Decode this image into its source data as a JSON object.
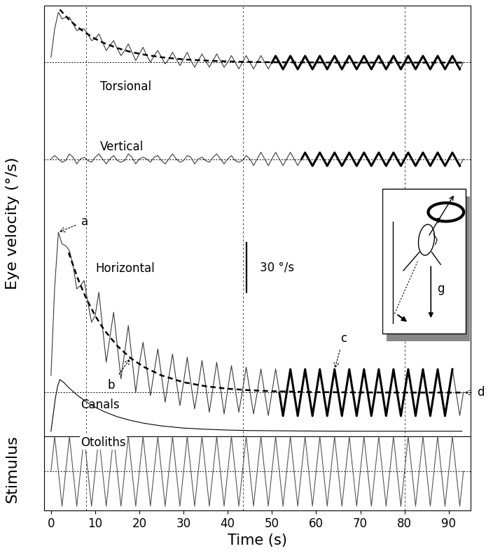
{
  "chart_data": {
    "type": "line",
    "x_label": "Time (s)",
    "y_label": "Eye velocity (°/s)",
    "stimulus_label": "Stimulus",
    "tick_labels": "x",
    "xlim": [
      -1.5,
      95
    ],
    "xticks": [
      0,
      10,
      20,
      30,
      40,
      50,
      60,
      70,
      80,
      90
    ],
    "ylim": [
      0,
      303
    ],
    "yticks": [],
    "x": [
      0,
      0.83,
      1.67,
      2.5,
      3.33,
      4.17,
      5,
      5.83,
      6.67,
      7.5,
      8.33,
      9.17,
      10,
      10.83,
      11.67,
      12.5,
      13.33,
      14.17,
      15,
      15.83,
      16.67,
      17.5,
      18.33,
      19.17,
      20,
      20.83,
      21.67,
      22.5,
      23.33,
      24.17,
      25,
      25.83,
      26.67,
      27.5,
      28.33,
      29.17,
      30,
      30.83,
      31.67,
      32.5,
      33.33,
      34.17,
      35,
      35.83,
      36.67,
      37.5,
      38.33,
      39.17,
      40,
      40.83,
      41.67,
      42.5,
      43.33,
      44.17,
      45,
      45.83,
      46.67,
      47.5,
      48.33,
      49.17,
      50,
      50.83,
      51.67,
      52.5,
      53.33,
      54.17,
      55,
      55.83,
      56.67,
      57.5,
      58.33,
      59.17,
      60,
      60.83,
      61.67,
      62.5,
      63.33,
      64.17,
      65,
      65.83,
      66.67,
      67.5,
      68.33,
      69.17,
      70,
      70.83,
      71.67,
      72.5,
      73.33,
      74.17,
      75,
      75.83,
      76.67,
      77.5,
      78.33,
      79.17,
      80,
      80.83,
      81.67,
      82.5,
      83.33,
      84.17,
      85,
      85.83,
      86.67,
      87.5,
      88.33,
      89.17,
      90,
      90.83,
      91.67,
      92.5,
      93.33
    ],
    "series": [
      {
        "name": "Torsional",
        "color": "#3a3a3a",
        "line_style": "solid",
        "baseline": 268.8,
        "values": [
          272,
          289,
          299,
          295,
          296,
          296,
          292,
          288,
          289,
          289,
          286,
          282,
          283,
          286,
          281,
          276,
          279,
          282,
          277,
          273,
          276,
          280,
          275,
          270,
          274,
          278,
          273,
          269,
          273,
          276,
          272,
          268,
          271,
          275,
          271,
          267,
          271,
          275,
          270,
          266,
          270,
          274,
          270,
          266,
          270,
          274,
          270,
          266,
          269,
          273,
          269,
          265,
          269,
          273,
          269,
          265,
          269,
          273,
          269,
          265,
          269,
          273,
          269,
          265,
          269,
          273,
          269,
          265,
          269,
          273,
          269,
          265,
          269,
          273,
          269,
          265,
          269,
          273,
          269,
          265,
          269,
          273,
          269,
          265,
          269,
          273,
          269,
          265,
          269,
          273,
          269,
          265,
          269,
          273,
          269,
          265,
          269,
          273,
          269,
          265,
          269,
          273,
          269,
          265,
          269,
          273,
          269,
          265,
          269,
          273,
          269,
          265,
          269
        ]
      },
      {
        "name": "Vertical",
        "color": "#3a3a3a",
        "line_style": "solid",
        "baseline": 210.8,
        "values": [
          211,
          213,
          211,
          209,
          210,
          214,
          212,
          208,
          211,
          212,
          210,
          209,
          212,
          214,
          211,
          208,
          211,
          213,
          210,
          209,
          210,
          214,
          212,
          208,
          211,
          212,
          211,
          209,
          212,
          213,
          210,
          208,
          211,
          214,
          211,
          209,
          210,
          213,
          212,
          208,
          211,
          212,
          210,
          209,
          212,
          214,
          211,
          208,
          211,
          213,
          210,
          209,
          210,
          213,
          211,
          207,
          211,
          215,
          211,
          207,
          211,
          215,
          211,
          207,
          211,
          215,
          211,
          207,
          211,
          215,
          211,
          207,
          211,
          215,
          211,
          207,
          211,
          215,
          211,
          207,
          211,
          215,
          211,
          207,
          211,
          215,
          211,
          207,
          211,
          215,
          211,
          207,
          211,
          215,
          211,
          207,
          211,
          215,
          211,
          207,
          211,
          215,
          211,
          207,
          211,
          215,
          211,
          207,
          211,
          215,
          211,
          207,
          211
        ]
      },
      {
        "name": "Horizontal",
        "color": "#3a3a3a",
        "line_style": "solid",
        "baseline": 70.8,
        "values": [
          81,
          134,
          167,
          160,
          159,
          156,
          147,
          133,
          135,
          138,
          125,
          113,
          117,
          131,
          110,
          89,
          104,
          119,
          99,
          79,
          95,
          111,
          91,
          71,
          88,
          101,
          85,
          69,
          83,
          97,
          81,
          65,
          80,
          94,
          78,
          63,
          77,
          92,
          76,
          61,
          75,
          90,
          75,
          59,
          74,
          89,
          74,
          58,
          73,
          87,
          73,
          59,
          72,
          86,
          72,
          58,
          71,
          85,
          71,
          57,
          71,
          85,
          71,
          57,
          71,
          85,
          71,
          57,
          71,
          85,
          71,
          57,
          71,
          85,
          71,
          57,
          71,
          85,
          71,
          57,
          71,
          85,
          71,
          57,
          71,
          85,
          71,
          57,
          71,
          85,
          71,
          57,
          71,
          85,
          71,
          57,
          71,
          85,
          71,
          57,
          71,
          85,
          71,
          57,
          71,
          85,
          71,
          57,
          71,
          85,
          71,
          57,
          71
        ]
      },
      {
        "name": "Canals",
        "color": "#000000",
        "line_style": "solid",
        "x": [
          0,
          0.5,
          1,
          1.5,
          2,
          3,
          4,
          6,
          8,
          10,
          12,
          15,
          18,
          21,
          25,
          30,
          35,
          40,
          45,
          50,
          60,
          70,
          80,
          93
        ],
        "values": [
          47.6,
          57.6,
          67.6,
          74.6,
          78.6,
          76.6,
          73.8,
          69.1,
          65.2,
          62.0,
          59.4,
          56.3,
          54.1,
          52.4,
          50.8,
          49.5,
          48.8,
          48.3,
          48.0,
          47.9,
          47.7,
          47.6,
          47.6,
          47.6
        ]
      },
      {
        "name": "Otoliths",
        "color": "#555555",
        "line_style": "solid",
        "baseline": 23.6,
        "values": [
          23.6,
          44.6,
          23.6,
          2.6,
          23.6,
          44.6,
          23.6,
          2.6,
          23.6,
          44.6,
          23.6,
          2.6,
          23.6,
          44.6,
          23.6,
          2.6,
          23.6,
          44.6,
          23.6,
          2.6,
          23.6,
          44.6,
          23.6,
          2.6,
          23.6,
          44.6,
          23.6,
          2.6,
          23.6,
          44.6,
          23.6,
          2.6,
          23.6,
          44.6,
          23.6,
          2.6,
          23.6,
          44.6,
          23.6,
          2.6,
          23.6,
          44.6,
          23.6,
          2.6,
          23.6,
          44.6,
          23.6,
          2.6,
          23.6,
          44.6,
          23.6,
          2.6,
          23.6,
          44.6,
          23.6,
          2.6,
          23.6,
          44.6,
          23.6,
          2.6,
          23.6,
          44.6,
          23.6,
          2.6,
          23.6,
          44.6,
          23.6,
          2.6,
          23.6,
          44.6,
          23.6,
          2.6,
          23.6,
          44.6,
          23.6,
          2.6,
          23.6,
          44.6,
          23.6,
          2.6,
          23.6,
          44.6,
          23.6,
          2.6,
          23.6,
          44.6,
          23.6,
          2.6,
          23.6,
          44.6,
          23.6,
          2.6,
          23.6,
          44.6,
          23.6,
          2.6,
          23.6,
          44.6,
          23.6,
          2.6,
          23.6,
          44.6,
          23.6,
          2.6,
          23.6,
          44.6,
          23.6,
          2.6,
          23.6,
          44.6,
          23.6,
          2.6,
          23.6
        ]
      }
    ],
    "fits": [
      {
        "color": "#000000",
        "line_style": "dashed",
        "x": [
          2,
          4,
          6,
          8,
          10,
          12,
          15,
          18,
          21,
          25,
          30,
          35,
          40,
          45,
          50,
          60,
          70,
          80,
          93
        ],
        "values": [
          300.6,
          294.8,
          290.1,
          286.3,
          283.1,
          280.5,
          277.5,
          275.2,
          273.6,
          272.0,
          270.7,
          270.0,
          269.5,
          269.2,
          269.0,
          268.9,
          268.8,
          268.8,
          268.8
        ]
      },
      {
        "color": "#000000",
        "line_style": "dashed",
        "x": [
          4,
          6,
          8,
          10,
          12,
          15,
          18,
          21,
          25,
          30,
          35,
          40,
          45,
          50,
          60,
          70,
          80,
          93
        ],
        "values": [
          154.8,
          139.6,
          127.1,
          116.9,
          108.5,
          98.8,
          91.5,
          86.2,
          81.1,
          77.0,
          74.6,
          73.1,
          72.2,
          71.6,
          71.1,
          70.9,
          70.8,
          70.8
        ]
      },
      {
        "color": "#000000",
        "line_style": "solid",
        "x": [
          50,
          50.83,
          51.67,
          52.5,
          53.33,
          54.17,
          55,
          55.83,
          56.67,
          57.5,
          58.33,
          59.17,
          60,
          60.83,
          61.67,
          62.5,
          63.33,
          64.17,
          65,
          65.83,
          66.67,
          67.5,
          68.33,
          69.17,
          70,
          70.83,
          71.67,
          72.5,
          73.33,
          74.17,
          75,
          75.83,
          76.67,
          77.5,
          78.33,
          79.17,
          80,
          80.83,
          81.67,
          82.5,
          83.33,
          84.17,
          85,
          85.83,
          86.67,
          87.5,
          88.33,
          89.17,
          90,
          90.83,
          91.67,
          92.5
        ],
        "values": [
          268.8,
          272.8,
          268.8,
          264.8,
          268.8,
          272.8,
          268.8,
          264.8,
          268.8,
          272.8,
          268.8,
          264.8,
          268.8,
          272.8,
          268.8,
          264.8,
          268.8,
          272.8,
          268.8,
          264.8,
          268.8,
          272.8,
          268.8,
          264.8,
          268.8,
          272.8,
          268.8,
          264.8,
          268.8,
          272.8,
          268.8,
          264.8,
          268.8,
          272.8,
          268.8,
          264.8,
          268.8,
          272.8,
          268.8,
          264.8,
          268.8,
          272.8,
          268.8,
          264.8,
          268.8,
          272.8,
          268.8,
          264.8,
          268.8,
          272.8,
          268.8,
          264.8
        ]
      },
      {
        "color": "#000000",
        "line_style": "solid",
        "x": [
          56.67,
          57.5,
          58.33,
          59.17,
          60,
          60.83,
          61.67,
          62.5,
          63.33,
          64.17,
          65,
          65.83,
          66.67,
          67.5,
          68.33,
          69.17,
          70,
          70.83,
          71.67,
          72.5,
          73.33,
          74.17,
          75,
          75.83,
          76.67,
          77.5,
          78.33,
          79.17,
          80,
          80.83,
          81.67,
          82.5,
          83.33,
          84.17,
          85,
          85.83,
          86.67,
          87.5,
          88.33,
          89.17,
          90,
          90.83,
          91.67,
          92.5
        ],
        "values": [
          210.8,
          214.8,
          210.8,
          206.8,
          210.8,
          214.8,
          210.8,
          206.8,
          210.8,
          214.8,
          210.8,
          206.8,
          210.8,
          214.8,
          210.8,
          206.8,
          210.8,
          214.8,
          210.8,
          206.8,
          210.8,
          214.8,
          210.8,
          206.8,
          210.8,
          214.8,
          210.8,
          206.8,
          210.8,
          214.8,
          210.8,
          206.8,
          210.8,
          214.8,
          210.8,
          206.8,
          210.8,
          214.8,
          210.8,
          206.8,
          210.8,
          214.8,
          210.8,
          206.8
        ]
      },
      {
        "color": "#000000",
        "line_style": "solid",
        "x": [
          51.67,
          52.5,
          53.33,
          54.17,
          55,
          55.83,
          56.67,
          57.5,
          58.33,
          59.17,
          60,
          60.83,
          61.67,
          62.5,
          63.33,
          64.17,
          65,
          65.83,
          66.67,
          67.5,
          68.33,
          69.17,
          70,
          70.83,
          71.67,
          72.5,
          73.33,
          74.17,
          75,
          75.83,
          76.67,
          77.5,
          78.33,
          79.17,
          80,
          80.83,
          81.67,
          82.5,
          83.33,
          84.17,
          85,
          85.83,
          86.67,
          87.5,
          88.33,
          89.17,
          90,
          90.83
        ],
        "values": [
          70.8,
          56.8,
          70.8,
          84.8,
          70.8,
          56.8,
          70.8,
          84.8,
          70.8,
          56.8,
          70.8,
          84.8,
          70.8,
          56.8,
          70.8,
          84.8,
          70.8,
          56.8,
          70.8,
          84.8,
          70.8,
          56.8,
          70.8,
          84.8,
          70.8,
          56.8,
          70.8,
          84.8,
          70.8,
          56.8,
          70.8,
          84.8,
          70.8,
          56.8,
          70.8,
          84.8,
          70.8,
          56.8,
          70.8,
          84.8,
          70.8,
          56.8,
          70.8,
          84.8,
          70.8,
          56.8,
          70.8,
          84.8
        ]
      }
    ],
    "vlines": [
      8,
      43.5,
      80
    ],
    "scale_bar": {
      "x": 44.2,
      "y0": 130.8,
      "length": 30,
      "label": "30 °/s"
    },
    "annotations": [
      {
        "text": "a",
        "x": 1.67,
        "y": 167
      },
      {
        "text": "b",
        "x": 18,
        "y": 91.5
      },
      {
        "text": "c",
        "x": 64.17,
        "y": 84.8
      },
      {
        "text": "d",
        "x": 93.33,
        "y": 70.8
      }
    ],
    "inset": {
      "label": "g"
    }
  }
}
